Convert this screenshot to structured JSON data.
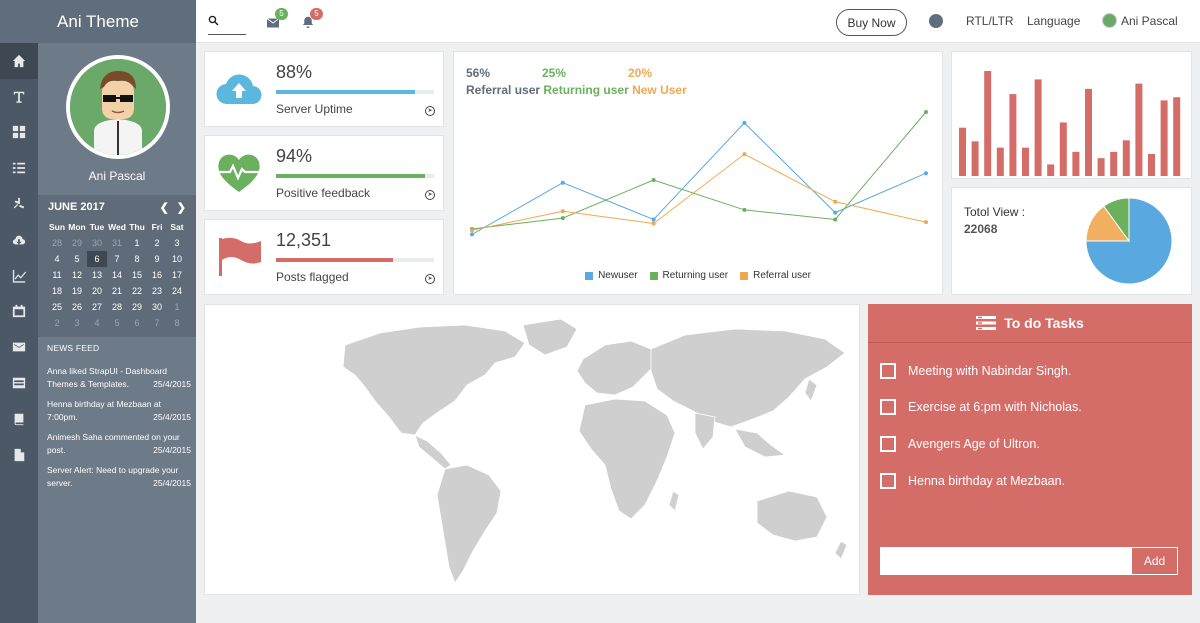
{
  "brand": "Ani Theme",
  "profile": {
    "name": "Ani Pascal"
  },
  "calendar": {
    "month": "JUNE 2017",
    "dow": [
      "Sun",
      "Mon",
      "Tue",
      "Wed",
      "Thu",
      "Fri",
      "Sat"
    ],
    "days": [
      [
        "28",
        "29",
        "30",
        "31",
        "1",
        "2",
        "3"
      ],
      [
        "4",
        "5",
        "6",
        "7",
        "8",
        "9",
        "10"
      ],
      [
        "11",
        "12",
        "13",
        "14",
        "15",
        "16",
        "17"
      ],
      [
        "18",
        "19",
        "20",
        "21",
        "22",
        "23",
        "24"
      ],
      [
        "25",
        "26",
        "27",
        "28",
        "29",
        "30",
        "1"
      ],
      [
        "2",
        "3",
        "4",
        "5",
        "6",
        "7",
        "8"
      ]
    ],
    "today": "6"
  },
  "news_feed": {
    "title": "NEWS FEED",
    "items": [
      {
        "text": "Anna liked StrapUI - Dashboard Themes & Templates.",
        "date": "25/4/2015"
      },
      {
        "text": "Henna birthday at Mezbaan at 7:00pm.",
        "date": "25/4/2015"
      },
      {
        "text": "Animesh Saha commented on your post.",
        "date": "25/4/2015"
      },
      {
        "text": "Server Alert: Need to upgrade your server.",
        "date": "25/4/2015"
      }
    ]
  },
  "topbar": {
    "mail_count": "5",
    "notif_count": "5",
    "buy_now": "Buy Now",
    "rtl_ltr": "RTL/LTR",
    "language": "Language",
    "user": "Ani Pascal"
  },
  "stats": [
    {
      "value": "88%",
      "label": "Server Uptime",
      "progress": 0.88,
      "color": "#5bb7dd"
    },
    {
      "value": "94%",
      "label": "Positive feedback",
      "progress": 0.94,
      "color": "#6ab05d"
    },
    {
      "value": "12,351",
      "label": "Posts flagged",
      "progress": 0.74,
      "color": "#d46c68"
    }
  ],
  "line_summary": [
    {
      "pct": "56%",
      "label": "Referral user",
      "color": "#5f6d7c"
    },
    {
      "pct": "25%",
      "label": "Returning user",
      "color": "#6ab05d"
    },
    {
      "pct": "20%",
      "label": "New User",
      "color": "#f0a850"
    }
  ],
  "chart_data": [
    {
      "type": "line",
      "x": [
        1,
        2,
        3,
        4,
        5,
        6,
        7
      ],
      "ylim": [
        0,
        100
      ],
      "series": [
        {
          "name": "Newuser",
          "color": "#5aa8e0",
          "values": [
            10,
            48,
            21,
            92,
            26,
            55,
            0
          ]
        },
        {
          "name": "Returning user",
          "color": "#6ab05d",
          "values": [
            14,
            22,
            50,
            28,
            21,
            100,
            0
          ]
        },
        {
          "name": "Referral user",
          "color": "#f0a850",
          "values": [
            13,
            27,
            18,
            69,
            34,
            19,
            0
          ]
        }
      ],
      "legend": "bottom"
    },
    {
      "type": "bar",
      "values": [
        46,
        33,
        100,
        27,
        78,
        27,
        92,
        11,
        51,
        23,
        83,
        17,
        23,
        34,
        88,
        21,
        72,
        75
      ],
      "color": "#d46c68"
    },
    {
      "type": "pie",
      "title": "Totol View :",
      "total": "22068",
      "values": [
        75,
        15,
        10
      ],
      "colors": [
        "#5aa8e0",
        "#f0b060",
        "#6ab05d"
      ]
    }
  ],
  "todo": {
    "title": "To do Tasks",
    "items": [
      "Meeting with Nabindar Singh.",
      "Exercise at 6:pm with Nicholas.",
      "Avengers Age of Ultron.",
      "Henna birthday at Mezbaan."
    ],
    "add_label": "Add"
  }
}
